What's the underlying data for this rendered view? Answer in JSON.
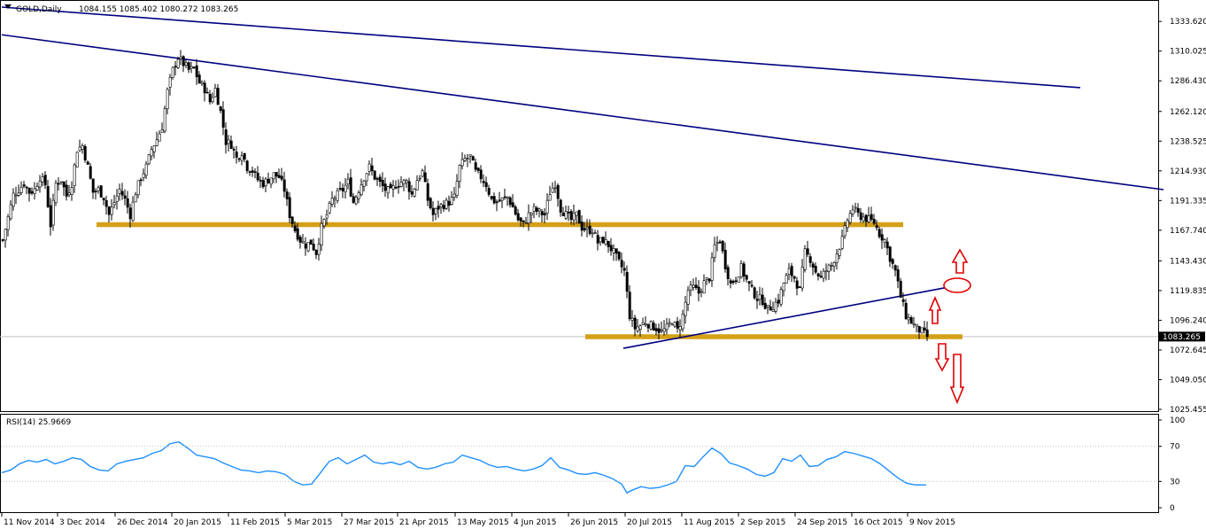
{
  "main_header": {
    "symbol": "GOLD,Daily",
    "ohlc": "1084.155 1085.402 1080.272 1083.265"
  },
  "rsi_header": "RSI(14) 25.9669",
  "current_price_label": "1083.265",
  "colors": {
    "bull_candle": "#000000",
    "bear_candle": "#000000",
    "trendline": "#000080",
    "support_band": "#d4a017",
    "rsi_line": "#1e90ff",
    "annotation_arrows": "#e00000",
    "axis": "#000000",
    "price_line": "#c0c0c0"
  },
  "chart_data": [
    {
      "type": "candlestick",
      "title": "GOLD,Daily",
      "ylim": [
        1025.455,
        1345
      ],
      "y_ticks": [
        "1333.620",
        "1310.025",
        "1286.430",
        "1262.120",
        "1238.525",
        "1214.930",
        "1191.335",
        "1167.740",
        "1143.430",
        "1119.835",
        "1096.240",
        "1072.645",
        "1049.050",
        "1025.455"
      ],
      "x_ticks": [
        "11 Nov 2014",
        "3 Dec 2014",
        "26 Dec 2014",
        "20 Jan 2015",
        "11 Feb 2015",
        "5 Mar 2015",
        "27 Mar 2015",
        "21 Apr 2015",
        "13 May 2015",
        "4 Jun 2015",
        "26 Jun 2015",
        "20 Jul 2015",
        "11 Aug 2015",
        "2 Sep 2015",
        "24 Sep 2015",
        "16 Oct 2015",
        "9 Nov 2015"
      ],
      "close_path": [
        [
          0,
          1160
        ],
        [
          6,
          1178
        ],
        [
          12,
          1196
        ],
        [
          18,
          1200
        ],
        [
          24,
          1205
        ],
        [
          30,
          1198
        ],
        [
          36,
          1200
        ],
        [
          42,
          1210
        ],
        [
          48,
          1204
        ],
        [
          54,
          1172
        ],
        [
          60,
          1205
        ],
        [
          66,
          1208
        ],
        [
          72,
          1195
        ],
        [
          78,
          1205
        ],
        [
          84,
          1232
        ],
        [
          90,
          1235
        ],
        [
          96,
          1218
        ],
        [
          102,
          1198
        ],
        [
          108,
          1200
        ],
        [
          114,
          1194
        ],
        [
          120,
          1180
        ],
        [
          126,
          1190
        ],
        [
          132,
          1200
        ],
        [
          138,
          1192
        ],
        [
          144,
          1180
        ],
        [
          150,
          1198
        ],
        [
          156,
          1210
        ],
        [
          162,
          1218
        ],
        [
          168,
          1232
        ],
        [
          174,
          1240
        ],
        [
          180,
          1250
        ],
        [
          186,
          1278
        ],
        [
          192,
          1295
        ],
        [
          198,
          1305
        ],
        [
          204,
          1300
        ],
        [
          210,
          1295
        ],
        [
          216,
          1296
        ],
        [
          222,
          1285
        ],
        [
          228,
          1280
        ],
        [
          234,
          1270
        ],
        [
          240,
          1280
        ],
        [
          246,
          1262
        ],
        [
          252,
          1238
        ],
        [
          258,
          1236
        ],
        [
          264,
          1225
        ],
        [
          270,
          1230
        ],
        [
          276,
          1218
        ],
        [
          282,
          1215
        ],
        [
          288,
          1208
        ],
        [
          294,
          1205
        ],
        [
          300,
          1208
        ],
        [
          306,
          1212
        ],
        [
          312,
          1210
        ],
        [
          318,
          1200
        ],
        [
          324,
          1180
        ],
        [
          330,
          1168
        ],
        [
          336,
          1160
        ],
        [
          342,
          1156
        ],
        [
          348,
          1158
        ],
        [
          354,
          1150
        ],
        [
          360,
          1170
        ],
        [
          366,
          1180
        ],
        [
          372,
          1192
        ],
        [
          378,
          1196
        ],
        [
          384,
          1200
        ],
        [
          390,
          1206
        ],
        [
          396,
          1190
        ],
        [
          402,
          1200
        ],
        [
          408,
          1210
        ],
        [
          414,
          1218
        ],
        [
          420,
          1210
        ],
        [
          426,
          1205
        ],
        [
          432,
          1200
        ],
        [
          438,
          1198
        ],
        [
          444,
          1204
        ],
        [
          450,
          1206
        ],
        [
          456,
          1206
        ],
        [
          462,
          1196
        ],
        [
          468,
          1208
        ],
        [
          474,
          1214
        ],
        [
          480,
          1192
        ],
        [
          486,
          1180
        ],
        [
          492,
          1186
        ],
        [
          498,
          1188
        ],
        [
          504,
          1190
        ],
        [
          510,
          1194
        ],
        [
          516,
          1218
        ],
        [
          522,
          1224
        ],
        [
          528,
          1226
        ],
        [
          534,
          1214
        ],
        [
          540,
          1210
        ],
        [
          546,
          1204
        ],
        [
          552,
          1192
        ],
        [
          558,
          1190
        ],
        [
          564,
          1192
        ],
        [
          570,
          1194
        ],
        [
          576,
          1186
        ],
        [
          582,
          1176
        ],
        [
          588,
          1172
        ],
        [
          594,
          1180
        ],
        [
          600,
          1184
        ],
        [
          606,
          1182
        ],
        [
          612,
          1180
        ],
        [
          618,
          1198
        ],
        [
          624,
          1205
        ],
        [
          630,
          1185
        ],
        [
          636,
          1180
        ],
        [
          642,
          1176
        ],
        [
          648,
          1180
        ],
        [
          654,
          1170
        ],
        [
          660,
          1168
        ],
        [
          666,
          1168
        ],
        [
          672,
          1158
        ],
        [
          678,
          1160
        ],
        [
          684,
          1156
        ],
        [
          690,
          1150
        ],
        [
          696,
          1142
        ],
        [
          702,
          1135
        ],
        [
          708,
          1100
        ],
        [
          714,
          1090
        ],
        [
          720,
          1092
        ],
        [
          726,
          1095
        ],
        [
          732,
          1092
        ],
        [
          738,
          1090
        ],
        [
          744,
          1087
        ],
        [
          750,
          1090
        ],
        [
          756,
          1096
        ],
        [
          762,
          1088
        ],
        [
          768,
          1100
        ],
        [
          774,
          1120
        ],
        [
          780,
          1122
        ],
        [
          786,
          1118
        ],
        [
          792,
          1126
        ],
        [
          798,
          1130
        ],
        [
          804,
          1155
        ],
        [
          810,
          1160
        ],
        [
          816,
          1140
        ],
        [
          822,
          1125
        ],
        [
          828,
          1130
        ],
        [
          834,
          1138
        ],
        [
          840,
          1128
        ],
        [
          846,
          1120
        ],
        [
          852,
          1114
        ],
        [
          858,
          1112
        ],
        [
          864,
          1105
        ],
        [
          870,
          1108
        ],
        [
          876,
          1112
        ],
        [
          882,
          1126
        ],
        [
          888,
          1135
        ],
        [
          894,
          1130
        ],
        [
          900,
          1120
        ],
        [
          906,
          1150
        ],
        [
          912,
          1145
        ],
        [
          918,
          1135
        ],
        [
          924,
          1130
        ],
        [
          930,
          1136
        ],
        [
          936,
          1140
        ],
        [
          942,
          1150
        ],
        [
          948,
          1160
        ],
        [
          954,
          1176
        ],
        [
          960,
          1185
        ],
        [
          966,
          1180
        ],
        [
          972,
          1178
        ],
        [
          978,
          1176
        ],
        [
          984,
          1174
        ],
        [
          990,
          1165
        ],
        [
          996,
          1160
        ],
        [
          1002,
          1146
        ],
        [
          1008,
          1135
        ],
        [
          1014,
          1115
        ],
        [
          1020,
          1100
        ],
        [
          1026,
          1095
        ],
        [
          1032,
          1090
        ],
        [
          1038,
          1087
        ],
        [
          1044,
          1083.265
        ]
      ]
    },
    {
      "type": "line",
      "title": "RSI(14) 25.9669",
      "ylim": [
        0,
        100
      ],
      "y_ticks": [
        "100",
        "70",
        "30",
        "0"
      ],
      "values": [
        [
          0,
          40
        ],
        [
          10,
          43
        ],
        [
          20,
          50
        ],
        [
          30,
          54
        ],
        [
          40,
          52
        ],
        [
          50,
          55
        ],
        [
          60,
          50
        ],
        [
          70,
          53
        ],
        [
          80,
          57
        ],
        [
          90,
          55
        ],
        [
          100,
          47
        ],
        [
          110,
          43
        ],
        [
          120,
          42
        ],
        [
          130,
          50
        ],
        [
          140,
          53
        ],
        [
          150,
          55
        ],
        [
          160,
          57
        ],
        [
          170,
          62
        ],
        [
          180,
          65
        ],
        [
          190,
          73
        ],
        [
          200,
          75
        ],
        [
          210,
          68
        ],
        [
          220,
          60
        ],
        [
          230,
          58
        ],
        [
          240,
          56
        ],
        [
          250,
          51
        ],
        [
          260,
          47
        ],
        [
          270,
          43
        ],
        [
          280,
          42
        ],
        [
          290,
          40
        ],
        [
          300,
          42
        ],
        [
          310,
          41
        ],
        [
          320,
          38
        ],
        [
          330,
          30
        ],
        [
          340,
          26
        ],
        [
          350,
          27
        ],
        [
          360,
          40
        ],
        [
          370,
          53
        ],
        [
          380,
          57
        ],
        [
          390,
          50
        ],
        [
          400,
          55
        ],
        [
          410,
          60
        ],
        [
          420,
          52
        ],
        [
          430,
          50
        ],
        [
          440,
          52
        ],
        [
          450,
          49
        ],
        [
          460,
          53
        ],
        [
          470,
          46
        ],
        [
          480,
          44
        ],
        [
          490,
          46
        ],
        [
          500,
          50
        ],
        [
          510,
          52
        ],
        [
          520,
          60
        ],
        [
          530,
          57
        ],
        [
          540,
          54
        ],
        [
          550,
          49
        ],
        [
          560,
          46
        ],
        [
          570,
          47
        ],
        [
          580,
          44
        ],
        [
          590,
          42
        ],
        [
          600,
          44
        ],
        [
          610,
          48
        ],
        [
          620,
          57
        ],
        [
          630,
          46
        ],
        [
          640,
          43
        ],
        [
          650,
          39
        ],
        [
          660,
          38
        ],
        [
          670,
          40
        ],
        [
          680,
          37
        ],
        [
          690,
          33
        ],
        [
          700,
          27
        ],
        [
          706,
          17
        ],
        [
          712,
          20
        ],
        [
          722,
          24
        ],
        [
          732,
          22
        ],
        [
          742,
          23
        ],
        [
          752,
          26
        ],
        [
          762,
          30
        ],
        [
          772,
          48
        ],
        [
          782,
          47
        ],
        [
          792,
          58
        ],
        [
          802,
          68
        ],
        [
          812,
          62
        ],
        [
          822,
          51
        ],
        [
          832,
          48
        ],
        [
          842,
          44
        ],
        [
          852,
          38
        ],
        [
          862,
          36
        ],
        [
          872,
          40
        ],
        [
          882,
          56
        ],
        [
          892,
          53
        ],
        [
          902,
          60
        ],
        [
          912,
          47
        ],
        [
          922,
          48
        ],
        [
          932,
          55
        ],
        [
          942,
          58
        ],
        [
          952,
          64
        ],
        [
          962,
          62
        ],
        [
          972,
          59
        ],
        [
          982,
          56
        ],
        [
          992,
          50
        ],
        [
          1002,
          42
        ],
        [
          1012,
          34
        ],
        [
          1022,
          28
        ],
        [
          1032,
          26
        ],
        [
          1044,
          25.9669
        ]
      ]
    }
  ],
  "annotations": {
    "support_bands": [
      {
        "price": 1172,
        "from_bar": 107,
        "to_bar": 1018
      },
      {
        "price": 1083,
        "from_bar": 659,
        "to_bar": 1085
      }
    ],
    "trendlines": [
      {
        "from": [
          0,
          1345
        ],
        "to": [
          1218,
          1281
        ]
      },
      {
        "from": [
          0,
          1323
        ],
        "to": [
          1312,
          1200
        ]
      },
      {
        "from": [
          702,
          1074
        ],
        "to": [
          1065,
          1122
        ]
      }
    ],
    "arrows_up": [
      "up-arrow-large",
      "up-arrow-small"
    ],
    "arrows_down": [
      "down-arrow-small",
      "down-arrow-large"
    ],
    "ellipse": "breakout-circle"
  }
}
